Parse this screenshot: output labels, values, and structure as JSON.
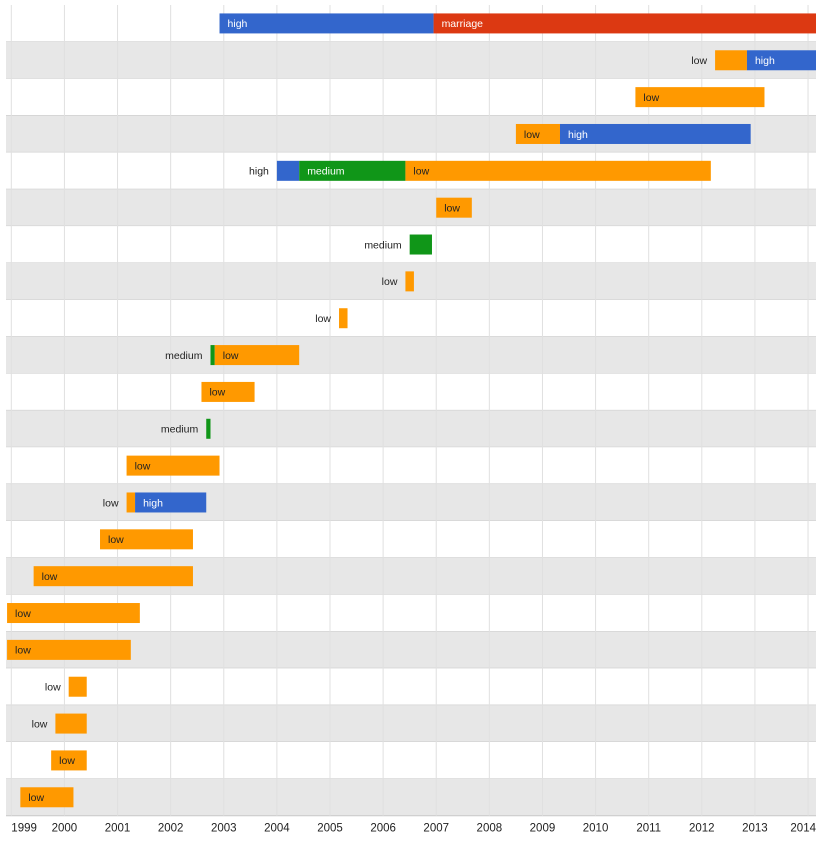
{
  "chart_data": {
    "type": "timeline",
    "x_axis": {
      "range": [
        1998.9,
        2014.15
      ],
      "ticks": [
        1999,
        2000,
        2001,
        2002,
        2003,
        2004,
        2005,
        2006,
        2007,
        2008,
        2009,
        2010,
        2011,
        2012,
        2013,
        2014
      ]
    },
    "colors": {
      "low": "#ff9900",
      "medium": "#109618",
      "high": "#3366cc",
      "marriage": "#dc3912",
      "row_alt": "#e7e7e7",
      "grid": "#e0e0e0",
      "row_border": "#c8c8c8"
    },
    "rows": [
      [
        {
          "label": "high",
          "start": 2002.92,
          "end": 2006.95
        },
        {
          "label": "marriage",
          "start": 2006.95,
          "end": 2014.15
        }
      ],
      [
        {
          "label": "low",
          "start": 2012.25,
          "end": 2012.85
        },
        {
          "label": "high",
          "start": 2012.85,
          "end": 2014.15
        }
      ],
      [
        {
          "label": "low",
          "start": 2010.75,
          "end": 2013.18
        }
      ],
      [
        {
          "label": "low",
          "start": 2008.5,
          "end": 2009.33
        },
        {
          "label": "high",
          "start": 2009.33,
          "end": 2012.92
        }
      ],
      [
        {
          "label": "high",
          "start": 2004.0,
          "end": 2004.42
        },
        {
          "label": "medium",
          "start": 2004.42,
          "end": 2006.42
        },
        {
          "label": "low",
          "start": 2006.42,
          "end": 2012.17
        }
      ],
      [
        {
          "label": "low",
          "start": 2007.0,
          "end": 2007.67
        }
      ],
      [
        {
          "label": "medium",
          "start": 2006.5,
          "end": 2006.92
        }
      ],
      [
        {
          "label": "low",
          "start": 2006.42,
          "end": 2006.58
        }
      ],
      [
        {
          "label": "low",
          "start": 2005.17,
          "end": 2005.33
        }
      ],
      [
        {
          "label": "medium",
          "start": 2002.75,
          "end": 2002.83
        },
        {
          "label": "low",
          "start": 2002.83,
          "end": 2004.42
        }
      ],
      [
        {
          "label": "low",
          "start": 2002.58,
          "end": 2003.58
        }
      ],
      [
        {
          "label": "medium",
          "start": 2002.67,
          "end": 2002.75
        }
      ],
      [
        {
          "label": "low",
          "start": 2001.17,
          "end": 2002.92
        }
      ],
      [
        {
          "label": "low",
          "start": 2001.17,
          "end": 2001.33
        },
        {
          "label": "high",
          "start": 2001.33,
          "end": 2002.67
        }
      ],
      [
        {
          "label": "low",
          "start": 2000.67,
          "end": 2002.42
        }
      ],
      [
        {
          "label": "low",
          "start": 1999.42,
          "end": 2002.42
        }
      ],
      [
        {
          "label": "low",
          "start": 1998.92,
          "end": 2001.42
        }
      ],
      [
        {
          "label": "low",
          "start": 1998.92,
          "end": 2001.25
        }
      ],
      [
        {
          "label": "low",
          "start": 2000.08,
          "end": 2000.42
        }
      ],
      [
        {
          "label": "low",
          "start": 1999.83,
          "end": 2000.42
        }
      ],
      [
        {
          "label": "low",
          "start": 1999.75,
          "end": 2000.42
        }
      ],
      [
        {
          "label": "low",
          "start": 1999.17,
          "end": 2000.17
        }
      ]
    ]
  }
}
